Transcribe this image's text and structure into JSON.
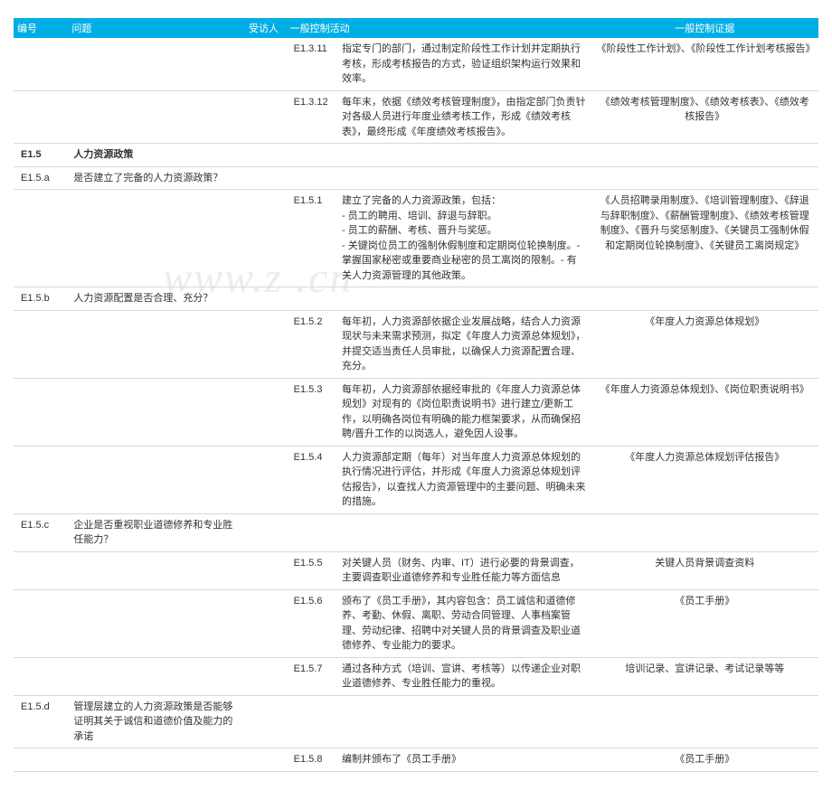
{
  "headers": {
    "id": "编号",
    "question": "问题",
    "interviewee": "受访人",
    "activity": "一般控制活动",
    "evidence": "一般控制证据"
  },
  "watermark": "www.z            .cn",
  "rows": [
    {
      "type": "item",
      "code": "E1.3.11",
      "activity": "指定专门的部门，通过制定阶段性工作计划并定期执行考核，形成考核报告的方式，验证组织架构运行效果和效率。",
      "evidence": "《阶段性工作计划》、《阶段性工作计划考核报告》"
    },
    {
      "type": "item",
      "code": "E1.3.12",
      "activity": "每年末，依据《绩效考核管理制度》，由指定部门负责针对各级人员进行年度业绩考核工作，形成《绩效考核表》，最终形成《年度绩效考核报告》。",
      "evidence": "《绩效考核管理制度》、《绩效考核表》、《绩效考核报告》"
    },
    {
      "type": "section",
      "id": "E1.5",
      "title": "人力资源政策"
    },
    {
      "type": "question",
      "id": "E1.5.a",
      "q": "是否建立了完备的人力资源政策？"
    },
    {
      "type": "item",
      "code": "E1.5.1",
      "activity": "建立了完备的人力资源政策，包括：\n- 员工的聘用、培训、辞退与辞职。\n- 员工的薪酬、考核、晋升与奖惩。\n- 关键岗位员工的强制休假制度和定期岗位轮换制度。- 掌握国家秘密或重要商业秘密的员工离岗的限制。- 有关人力资源管理的其他政策。",
      "evidence": "《人员招聘录用制度》、《培训管理制度》、《辞退与辞职制度》、《薪酬管理制度》、《绩效考核管理制度》、《晋升与奖惩制度》、《关键员工强制休假和定期岗位轮换制度》、《关键员工离岗规定》"
    },
    {
      "type": "question",
      "id": "E1.5.b",
      "q": "人力资源配置是否合理、充分？"
    },
    {
      "type": "item",
      "code": "E1.5.2",
      "activity": "每年初，人力资源部依据企业发展战略，结合人力资源现状与未来需求预测，拟定《年度人力资源总体规划》，并提交适当责任人员审批，以确保人力资源配置合理、充分。",
      "evidence": "《年度人力资源总体规划》"
    },
    {
      "type": "item",
      "code": "E1.5.3",
      "activity": "每年初，人力资源部依据经审批的《年度人力资源总体规划》对现有的《岗位职责说明书》进行建立/更新工作，以明确各岗位有明确的能力框架要求，从而确保招聘/晋升工作的以岗选人，避免因人设事。",
      "evidence": "《年度人力资源总体规划》、《岗位职责说明书》"
    },
    {
      "type": "item",
      "code": "E1.5.4",
      "activity": "人力资源部定期（每年）对当年度人力资源总体规划的执行情况进行评估，并形成《年度人力资源总体规划评估报告》，以查找人力资源管理中的主要问题、明确未来的措施。",
      "evidence": "《年度人力资源总体规划评估报告》"
    },
    {
      "type": "question",
      "id": "E1.5.c",
      "q": "企业是否重视职业道德修养和专业胜任能力？"
    },
    {
      "type": "item",
      "code": "E1.5.5",
      "activity": "对关键人员（财务、内审、IT）进行必要的背景调查，主要调查职业道德修养和专业胜任能力等方面信息",
      "evidence": "关键人员背景调查资料"
    },
    {
      "type": "item",
      "code": "E1.5.6",
      "activity": "颁布了《员工手册》，其内容包含：员工诚信和道德修养、考勤、休假、离职、劳动合同管理、人事档案管理、劳动纪律、招聘中对关键人员的背景调查及职业道德修养、专业能力的要求。",
      "evidence": "《员工手册》"
    },
    {
      "type": "item",
      "code": "E1.5.7",
      "activity": "通过各种方式（培训、宣讲、考核等）以传递企业对职业道德修养、专业胜任能力的重视。",
      "evidence": "培训记录、宣讲记录、考试记录等等"
    },
    {
      "type": "question",
      "id": "E1.5.d",
      "q": "管理层建立的人力资源政策是否能够证明其关于诚信和道德价值及能力的承诺"
    },
    {
      "type": "item",
      "code": "E1.5.8",
      "activity": "编制并颁布了《员工手册》",
      "evidence": "《员工手册》"
    }
  ]
}
